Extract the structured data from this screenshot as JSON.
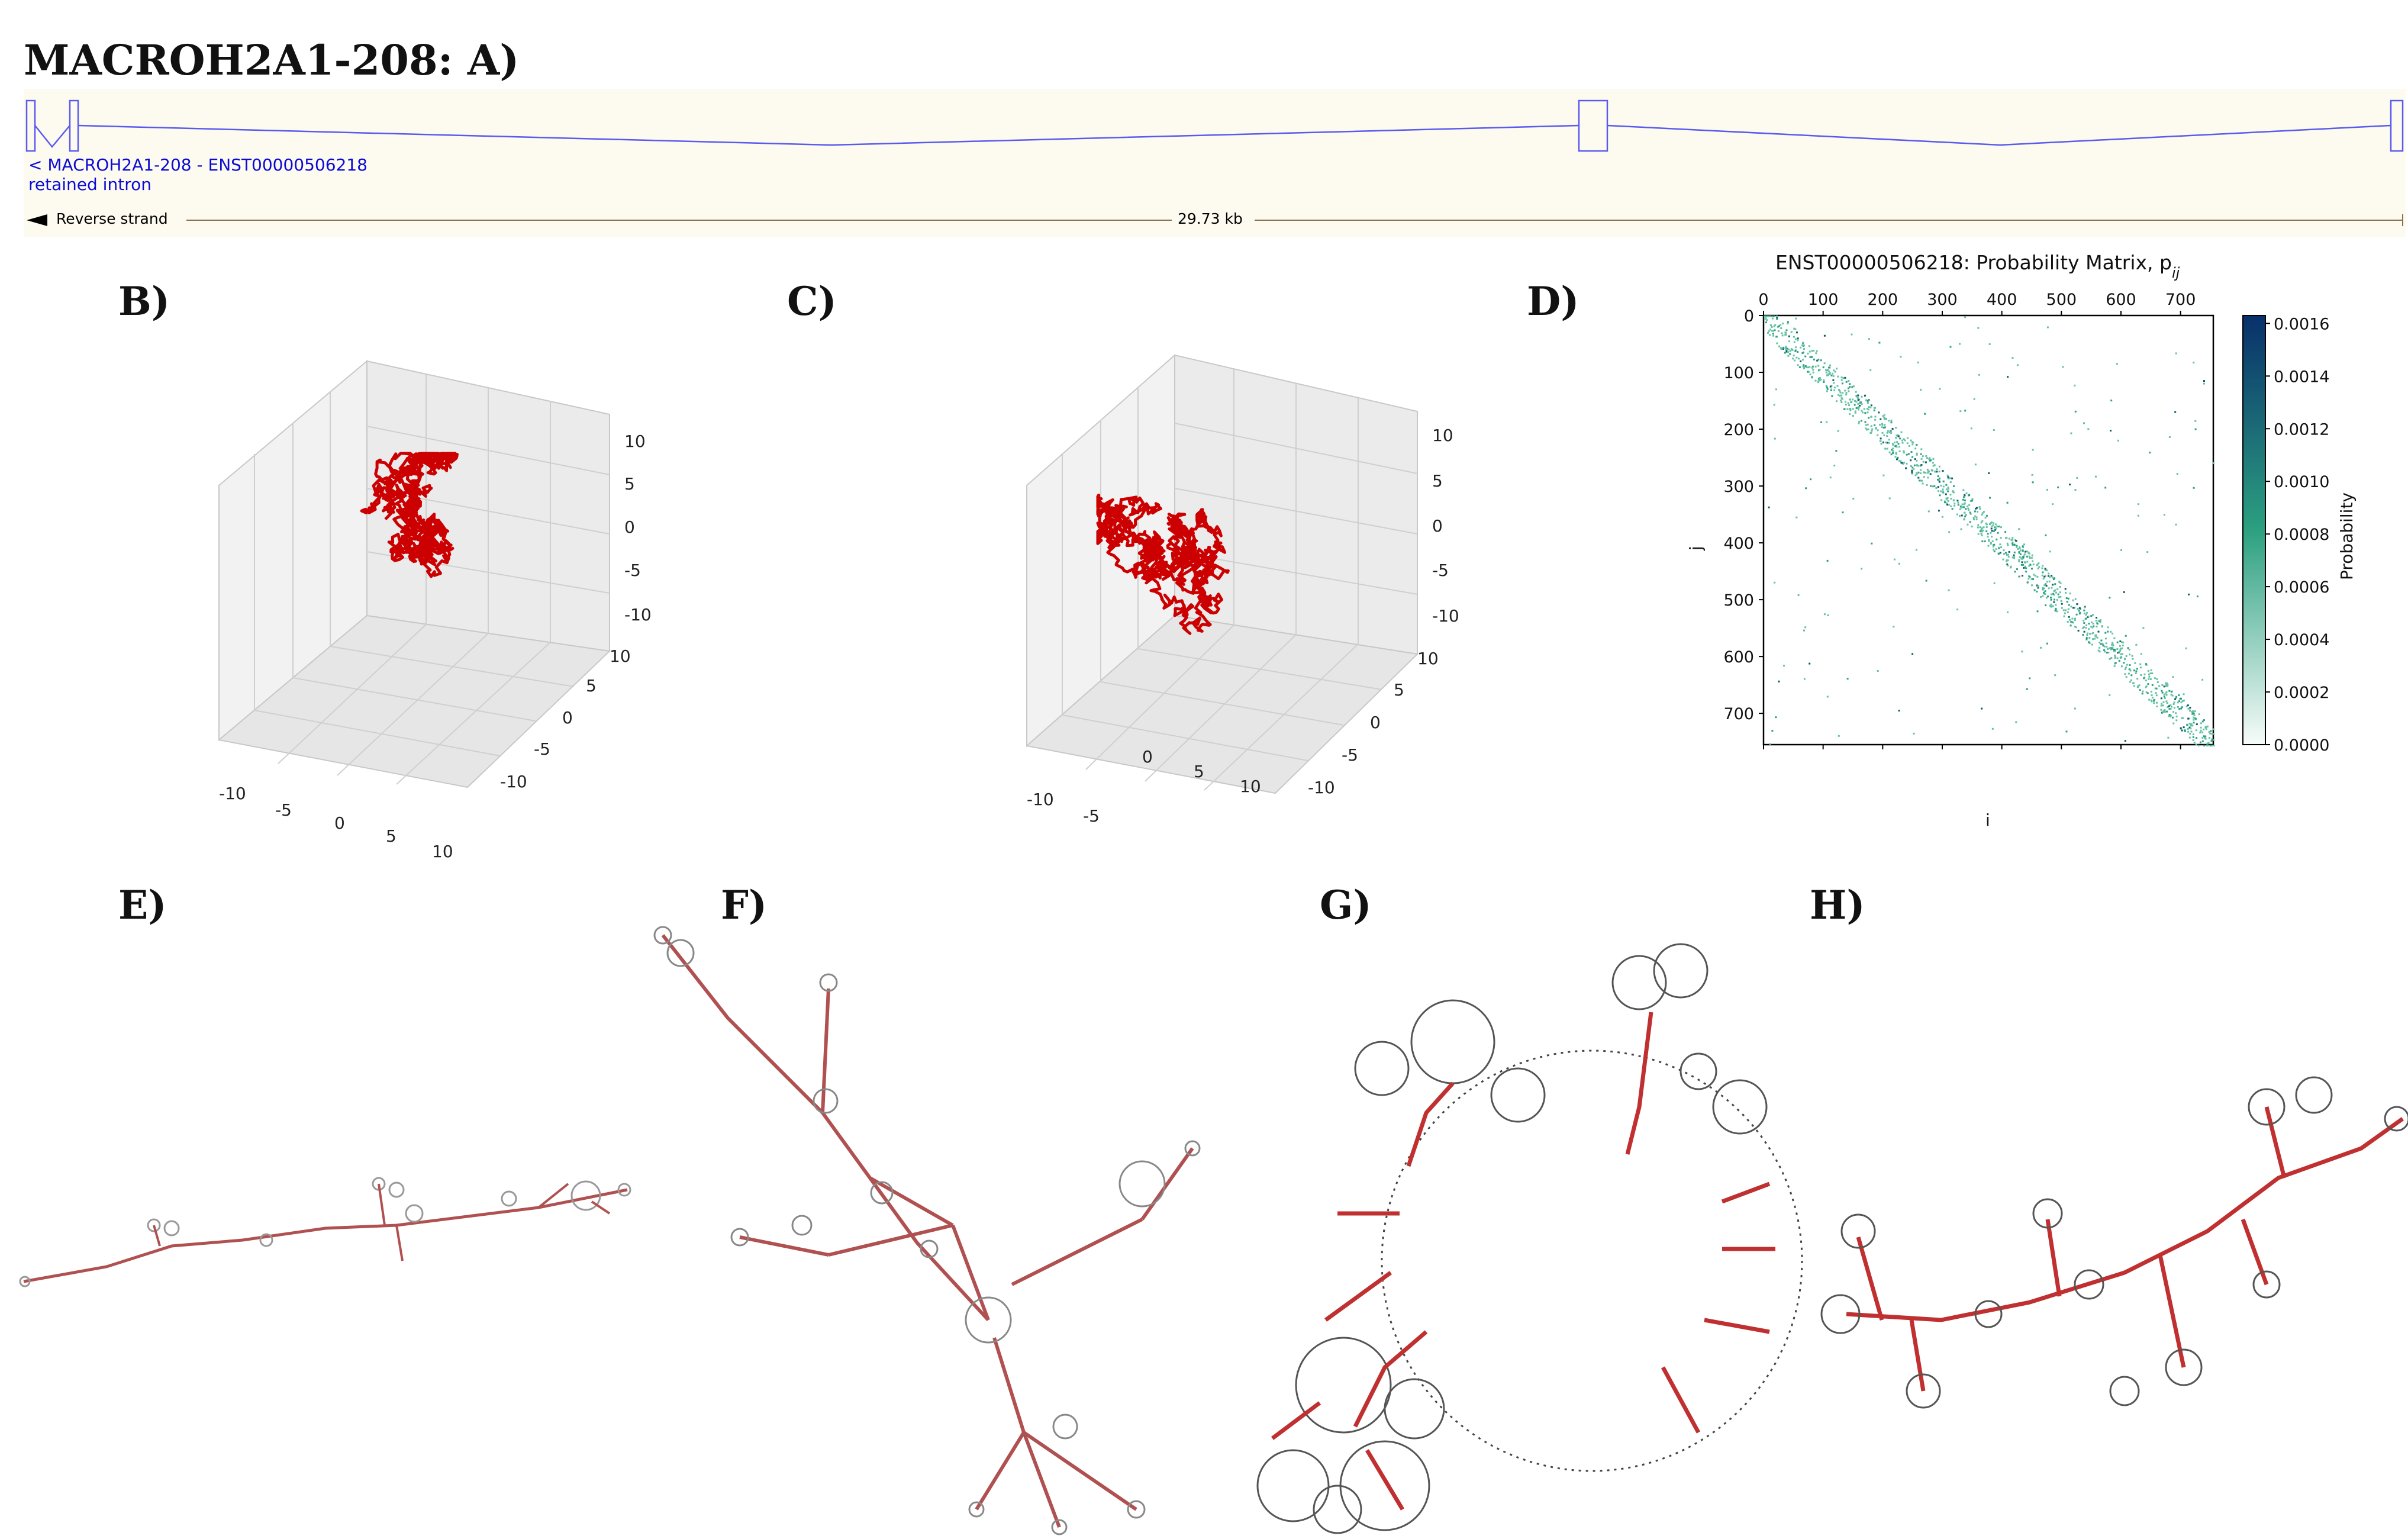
{
  "figure": {
    "title": "MACROH2A1-208: A)"
  },
  "gene_track": {
    "transcript_label": "< MACROH2A1-208 - ENST00000506218",
    "biotype": "retained intron",
    "strand_label": "Reverse strand",
    "scale_label": "29.73 kb",
    "colors": {
      "exon_line": "#5a5af0",
      "label": "#0b0bd6",
      "background": "#fdfbef"
    }
  },
  "panels": {
    "b": {
      "letter": "B)"
    },
    "c": {
      "letter": "C)"
    },
    "d": {
      "letter": "D)"
    },
    "e": {
      "letter": "E)"
    },
    "f": {
      "letter": "F)"
    },
    "g": {
      "letter": "G)"
    },
    "h": {
      "letter": "H)"
    }
  },
  "scatter3d": {
    "x_ticks": [
      "-10",
      "-5",
      "0",
      "5",
      "10"
    ],
    "y_ticks": [
      "-10",
      "-5",
      "0",
      "5",
      "10"
    ],
    "z_ticks": [
      "10",
      "5",
      "0",
      "-5",
      "-10"
    ],
    "trace_color": "#cc0000"
  },
  "chart_data": {
    "type": "heatmap",
    "title": "ENST00000506218: Probability Matrix, p",
    "title_sub": "ij",
    "xlabel": "i",
    "ylabel": "j",
    "x_ticks": [
      "0",
      "100",
      "200",
      "300",
      "400",
      "500",
      "600",
      "700"
    ],
    "y_ticks": [
      "0",
      "100",
      "200",
      "300",
      "400",
      "500",
      "600",
      "700"
    ],
    "xlim": [
      0,
      755
    ],
    "ylim": [
      0,
      755
    ],
    "colorbar": {
      "label": "Probability",
      "ticks": [
        "0.0016",
        "0.0014",
        "0.0012",
        "0.0010",
        "0.0008",
        "0.0006",
        "0.0004",
        "0.0002",
        "0.0000"
      ],
      "range": [
        0,
        0.00163
      ],
      "colors": [
        "#f7fcfa",
        "#2ca080",
        "#08306b"
      ]
    },
    "structure": "Sparse points concentrated along the main diagonal i = j, with scattered off-diagonal pairs"
  }
}
